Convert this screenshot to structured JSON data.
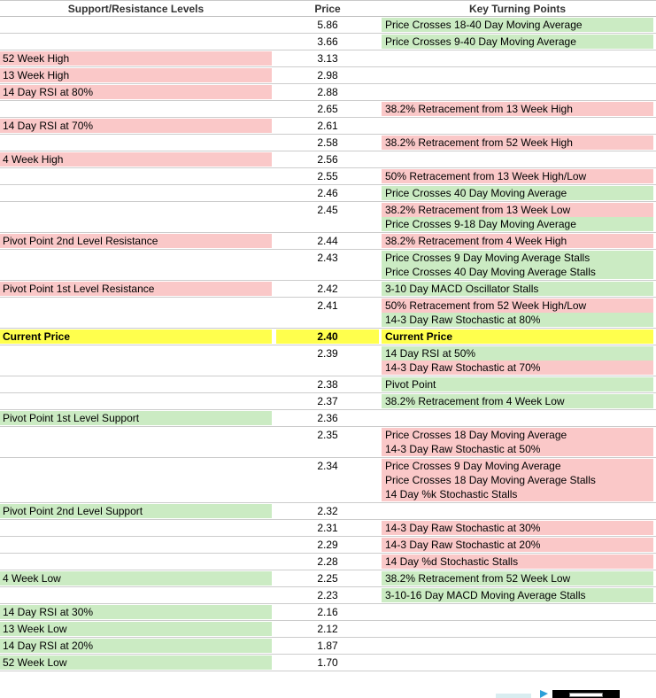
{
  "header": {
    "col_support": "Support/Resistance Levels",
    "col_price": "Price",
    "col_turning": "Key Turning Points"
  },
  "colors": {
    "resistance_pink": "#FAC8C8",
    "support_green": "#CBEBC3",
    "current_yellow": "#FFFF4D",
    "row_border": "#CCCCCC"
  },
  "current_price": "2.40",
  "rows": [
    {
      "price": "5.86",
      "label": "",
      "label_type": "none",
      "points": [
        {
          "text": "Price Crosses 18-40 Day Moving Average",
          "type": "green"
        }
      ]
    },
    {
      "price": "3.66",
      "label": "",
      "label_type": "none",
      "points": [
        {
          "text": "Price Crosses 9-40 Day Moving Average",
          "type": "green"
        }
      ]
    },
    {
      "price": "3.13",
      "label": "52 Week High",
      "label_type": "pink",
      "points": []
    },
    {
      "price": "2.98",
      "label": "13 Week High",
      "label_type": "pink",
      "points": []
    },
    {
      "price": "2.88",
      "label": "14 Day RSI at 80%",
      "label_type": "pink",
      "points": []
    },
    {
      "price": "2.65",
      "label": "",
      "label_type": "none",
      "points": [
        {
          "text": "38.2% Retracement from 13 Week High",
          "type": "pink"
        }
      ]
    },
    {
      "price": "2.61",
      "label": "14 Day RSI at 70%",
      "label_type": "pink",
      "points": []
    },
    {
      "price": "2.58",
      "label": "",
      "label_type": "none",
      "points": [
        {
          "text": "38.2% Retracement from 52 Week High",
          "type": "pink"
        }
      ]
    },
    {
      "price": "2.56",
      "label": "4 Week High",
      "label_type": "pink",
      "points": []
    },
    {
      "price": "2.55",
      "label": "",
      "label_type": "none",
      "points": [
        {
          "text": "50% Retracement from 13 Week High/Low",
          "type": "pink"
        }
      ]
    },
    {
      "price": "2.46",
      "label": "",
      "label_type": "none",
      "points": [
        {
          "text": "Price Crosses 40 Day Moving Average",
          "type": "green"
        }
      ]
    },
    {
      "price": "2.45",
      "label": "",
      "label_type": "none",
      "points": [
        {
          "text": "38.2% Retracement from 13 Week Low",
          "type": "pink"
        },
        {
          "text": "Price Crosses 9-18 Day Moving Average",
          "type": "green"
        }
      ]
    },
    {
      "price": "2.44",
      "label": "Pivot Point 2nd Level Resistance",
      "label_type": "pink",
      "points": [
        {
          "text": "38.2% Retracement from 4 Week High",
          "type": "pink"
        }
      ]
    },
    {
      "price": "2.43",
      "label": "",
      "label_type": "none",
      "points": [
        {
          "text": "Price Crosses 9 Day Moving Average Stalls",
          "type": "green"
        },
        {
          "text": "Price Crosses 40 Day Moving Average Stalls",
          "type": "green"
        }
      ]
    },
    {
      "price": "2.42",
      "label": "Pivot Point 1st Level Resistance",
      "label_type": "pink",
      "points": [
        {
          "text": "3-10 Day MACD Oscillator Stalls",
          "type": "green"
        }
      ]
    },
    {
      "price": "2.41",
      "label": "",
      "label_type": "none",
      "points": [
        {
          "text": "50% Retracement from 52 Week High/Low",
          "type": "pink"
        },
        {
          "text": "14-3 Day Raw Stochastic at 80%",
          "type": "green"
        }
      ]
    },
    {
      "price": "2.40",
      "label": "Current Price",
      "label_type": "yellow",
      "price_type": "yellow",
      "bold": true,
      "points": [
        {
          "text": "Current Price",
          "type": "yellow"
        }
      ]
    },
    {
      "price": "2.39",
      "label": "",
      "label_type": "none",
      "points": [
        {
          "text": "14 Day RSI at 50%",
          "type": "green"
        },
        {
          "text": "14-3 Day Raw Stochastic at 70%",
          "type": "pink"
        }
      ]
    },
    {
      "price": "2.38",
      "label": "",
      "label_type": "none",
      "points": [
        {
          "text": "Pivot Point",
          "type": "green"
        }
      ]
    },
    {
      "price": "2.37",
      "label": "",
      "label_type": "none",
      "points": [
        {
          "text": "38.2% Retracement from 4 Week Low",
          "type": "green"
        }
      ]
    },
    {
      "price": "2.36",
      "label": "Pivot Point 1st Level Support",
      "label_type": "green",
      "points": []
    },
    {
      "price": "2.35",
      "label": "",
      "label_type": "none",
      "points": [
        {
          "text": "Price Crosses 18 Day Moving Average",
          "type": "pink"
        },
        {
          "text": "14-3 Day Raw Stochastic at 50%",
          "type": "pink"
        }
      ]
    },
    {
      "price": "2.34",
      "label": "",
      "label_type": "none",
      "points": [
        {
          "text": "Price Crosses 9 Day Moving Average",
          "type": "pink"
        },
        {
          "text": "Price Crosses 18 Day Moving Average Stalls",
          "type": "pink"
        },
        {
          "text": "14 Day %k Stochastic Stalls",
          "type": "pink"
        }
      ]
    },
    {
      "price": "2.32",
      "label": "Pivot Point 2nd Level Support",
      "label_type": "green",
      "points": []
    },
    {
      "price": "2.31",
      "label": "",
      "label_type": "none",
      "points": [
        {
          "text": "14-3 Day Raw Stochastic at 30%",
          "type": "pink"
        }
      ]
    },
    {
      "price": "2.29",
      "label": "",
      "label_type": "none",
      "points": [
        {
          "text": "14-3 Day Raw Stochastic at 20%",
          "type": "pink"
        }
      ]
    },
    {
      "price": "2.28",
      "label": "",
      "label_type": "none",
      "points": [
        {
          "text": "14 Day %d Stochastic Stalls",
          "type": "pink"
        }
      ]
    },
    {
      "price": "2.25",
      "label": "4 Week Low",
      "label_type": "green",
      "points": [
        {
          "text": "38.2% Retracement from 52 Week Low",
          "type": "green"
        }
      ]
    },
    {
      "price": "2.23",
      "label": "",
      "label_type": "none",
      "points": [
        {
          "text": "3-10-16 Day MACD Moving Average Stalls",
          "type": "green"
        }
      ]
    },
    {
      "price": "2.16",
      "label": "14 Day RSI at 30%",
      "label_type": "green",
      "points": []
    },
    {
      "price": "2.12",
      "label": "13 Week Low",
      "label_type": "green",
      "points": []
    },
    {
      "price": "1.87",
      "label": "14 Day RSI at 20%",
      "label_type": "green",
      "points": []
    },
    {
      "price": "1.70",
      "label": "52 Week Low",
      "label_type": "green",
      "points": []
    }
  ]
}
